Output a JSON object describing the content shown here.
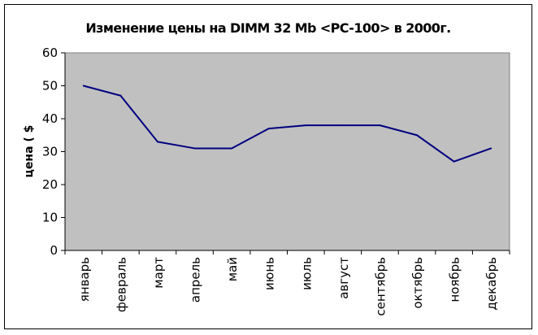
{
  "chart_data": {
    "type": "line",
    "title": "Изменение цены на DIMM 32 Mb <PC-100> в 2000г.",
    "xlabel": "",
    "ylabel": "цена ( $",
    "categories": [
      "январь",
      "февраль",
      "март",
      "апрель",
      "май",
      "июнь",
      "июль",
      "август",
      "сентябрь",
      "октябрь",
      "ноябрь",
      "декабрь"
    ],
    "series": [
      {
        "values": [
          50,
          47,
          33,
          31,
          31,
          37,
          38,
          38,
          38,
          35,
          27,
          31
        ]
      }
    ],
    "ylim": [
      0,
      60
    ],
    "yticks": [
      0,
      10,
      20,
      30,
      40,
      50,
      60
    ],
    "grid": false,
    "legend": "none",
    "colors": {
      "plot_background": "#c0c0c0",
      "line": "#000080",
      "axis": "#000000"
    }
  }
}
